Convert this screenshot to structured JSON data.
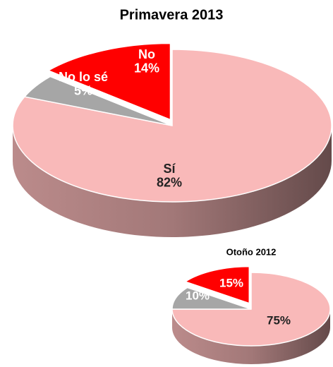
{
  "chart_data": [
    {
      "type": "pie3d",
      "title": "Primavera 2013",
      "categories": [
        "Sí",
        "No lo sé",
        "No"
      ],
      "values": [
        82,
        5,
        14
      ],
      "value_labels": [
        "82%",
        "5%",
        "14%"
      ],
      "colors": [
        "#f9b9b9",
        "#a6a6a6",
        "#ff0000"
      ],
      "exploded": [
        false,
        false,
        true
      ]
    },
    {
      "type": "pie3d",
      "title": "Otoño 2012",
      "values": [
        75,
        10,
        15
      ],
      "value_labels": [
        "75%",
        "10%",
        "15%"
      ],
      "colors": [
        "#f9b9b9",
        "#a6a6a6",
        "#ff0000"
      ],
      "exploded": [
        false,
        false,
        true
      ]
    }
  ]
}
